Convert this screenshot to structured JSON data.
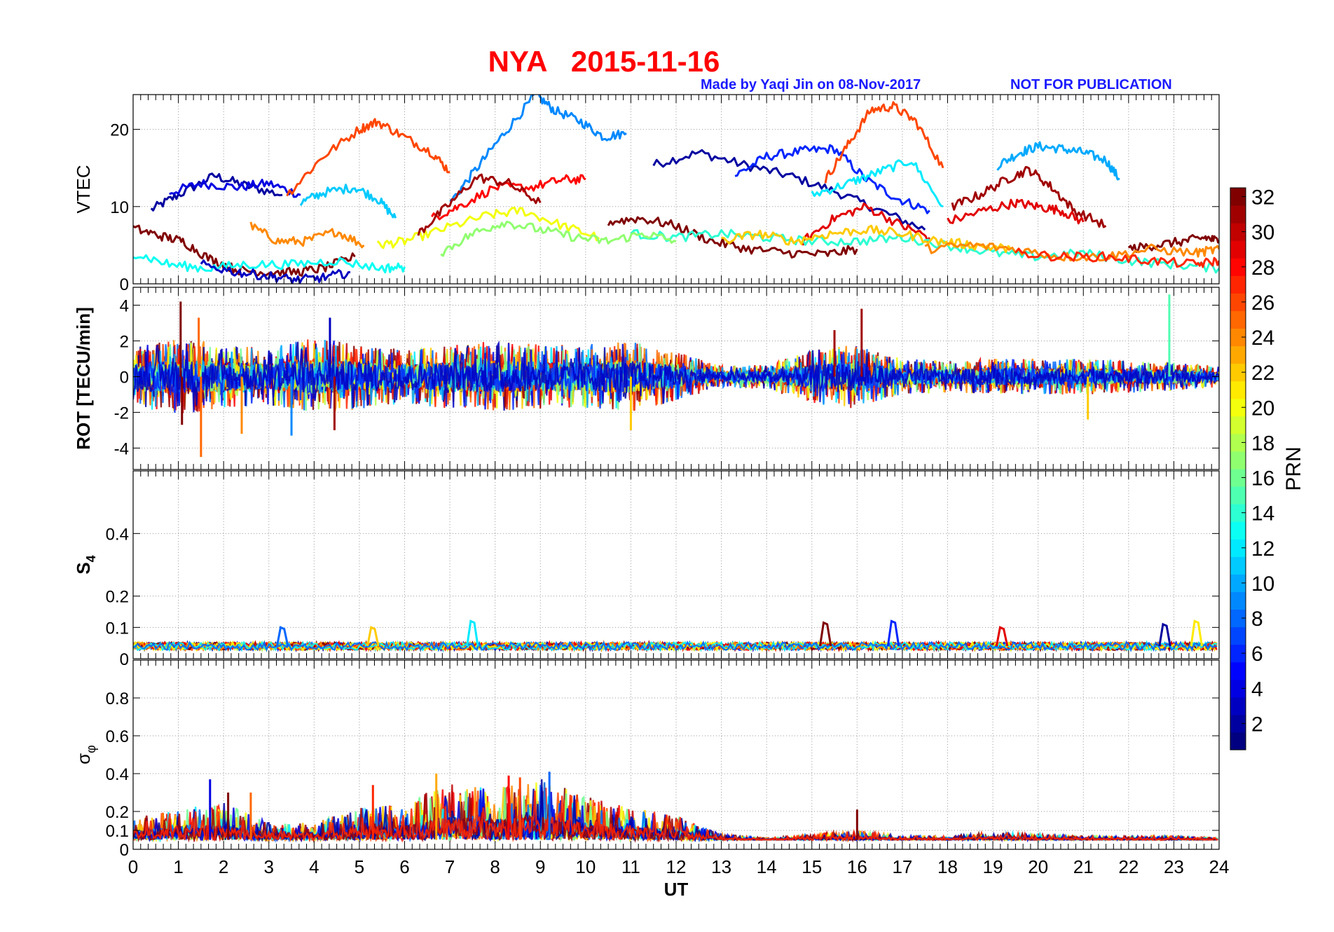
{
  "figure": {
    "title": "NYA   2015-11-16",
    "credit_left": "Made by Yaqi Jin on 08-Nov-2017",
    "credit_right": "NOT FOR PUBLICATION"
  },
  "colors": {
    "title": "#ff0000",
    "credit": "#1a1aff",
    "grid": "#9a9a9a",
    "axis": "#000000"
  },
  "chart_data": [
    {
      "type": "line",
      "panel": "vtec",
      "ylabel": "VTEC",
      "ylim": [
        0,
        24.5
      ],
      "yticks": [
        0,
        10,
        20
      ],
      "xlim": [
        0,
        24
      ],
      "grid": true,
      "series": [
        {
          "prn": 2,
          "x": [
            0.4,
            1.0,
            1.8,
            2.5,
            3.3
          ],
          "y": [
            9.6,
            11.5,
            14.0,
            12.7,
            11.5
          ]
        },
        {
          "prn": 2,
          "x": [
            11.5,
            12.5,
            13.5,
            14.5,
            15.5,
            16.5,
            17.5
          ],
          "y": [
            15.4,
            17.0,
            15.4,
            14.0,
            12.0,
            9.5,
            7.0
          ]
        },
        {
          "prn": 4,
          "x": [
            0.8,
            1.5,
            2.3,
            3.0,
            3.7
          ],
          "y": [
            11.8,
            13.0,
            12.5,
            13.0,
            11.5
          ]
        },
        {
          "prn": 6,
          "x": [
            13.3,
            14.0,
            14.8,
            15.5,
            16.2,
            16.9,
            17.6
          ],
          "y": [
            14.0,
            16.5,
            17.2,
            17.5,
            13.5,
            11.0,
            9.5
          ]
        },
        {
          "prn": 9,
          "x": [
            7.0,
            7.6,
            8.2,
            8.9,
            9.3,
            9.9,
            10.4,
            10.9
          ],
          "y": [
            10.5,
            15.0,
            19.5,
            24.5,
            22.5,
            21.0,
            19.0,
            19.5
          ]
        },
        {
          "prn": 10,
          "x": [
            19.1,
            19.6,
            20.0,
            20.5,
            21.0,
            21.5,
            21.8
          ],
          "y": [
            15.3,
            17.0,
            17.8,
            17.5,
            17.0,
            16.0,
            13.5
          ]
        },
        {
          "prn": 11,
          "x": [
            3.7,
            4.2,
            4.9,
            5.4,
            5.8
          ],
          "y": [
            10.5,
            11.8,
            12.5,
            11.0,
            8.5
          ]
        },
        {
          "prn": 12,
          "x": [
            15.0,
            15.8,
            16.4,
            17.2,
            17.9
          ],
          "y": [
            11.5,
            13.0,
            14.3,
            16.0,
            10.0
          ]
        },
        {
          "prn": 20,
          "x": [
            5.4,
            6.0,
            6.8,
            7.8,
            8.6,
            9.5,
            10.3
          ],
          "y": [
            5.0,
            5.5,
            7.0,
            8.8,
            9.5,
            7.5,
            6.0
          ]
        },
        {
          "prn": 24,
          "x": [
            2.6,
            3.2,
            3.8,
            4.5,
            5.1
          ],
          "y": [
            7.5,
            5.5,
            5.5,
            6.8,
            5.0
          ]
        },
        {
          "prn": 26,
          "x": [
            3.4,
            4.2,
            5.0,
            5.4,
            6.0,
            6.6,
            7.0
          ],
          "y": [
            11.5,
            16.5,
            20.0,
            21.0,
            19.0,
            17.0,
            14.5
          ]
        },
        {
          "prn": 26,
          "x": [
            15.3,
            15.8,
            16.3,
            16.8,
            17.3,
            17.9
          ],
          "y": [
            13.5,
            18.0,
            22.5,
            23.0,
            21.0,
            15.0
          ]
        },
        {
          "prn": 28,
          "x": [
            6.6,
            7.2,
            8.0,
            8.8,
            9.5,
            10.0
          ],
          "y": [
            8.5,
            10.0,
            12.5,
            12.5,
            13.5,
            13.5
          ]
        },
        {
          "prn": 29,
          "x": [
            14.8,
            15.5,
            16.2,
            17.0,
            17.6
          ],
          "y": [
            5.5,
            8.5,
            10.0,
            7.5,
            6.0
          ]
        },
        {
          "prn": 29,
          "x": [
            18.0,
            18.8,
            19.5,
            20.0,
            20.5,
            21.0
          ],
          "y": [
            8.0,
            9.5,
            10.5,
            10.0,
            9.5,
            8.0
          ]
        },
        {
          "prn": 31,
          "x": [
            6.3,
            6.9,
            7.6,
            8.3,
            9.0
          ],
          "y": [
            6.5,
            9.8,
            13.8,
            13.0,
            10.5
          ]
        },
        {
          "prn": 31,
          "x": [
            18.1,
            18.7,
            19.3,
            19.8,
            20.3,
            20.8,
            21.5
          ],
          "y": [
            10.0,
            11.5,
            13.5,
            14.8,
            12.5,
            9.5,
            7.5
          ]
        },
        {
          "prn": 32,
          "x": [
            0.0,
            0.6,
            1.1,
            1.7,
            2.3,
            2.9,
            3.6,
            4.2,
            4.9
          ],
          "y": [
            7.2,
            6.2,
            5.5,
            3.2,
            1.8,
            1.5,
            1.5,
            2.0,
            3.5
          ]
        },
        {
          "prn": 32,
          "x": [
            10.5,
            11.2,
            12.0,
            12.8,
            13.6,
            14.5,
            15.3,
            16.0
          ],
          "y": [
            8.0,
            8.5,
            7.5,
            5.5,
            4.5,
            4.0,
            3.8,
            4.5
          ]
        },
        {
          "prn": 32,
          "x": [
            22.0,
            22.6,
            23.2,
            23.7,
            24.0
          ],
          "y": [
            4.5,
            5.0,
            5.5,
            6.0,
            5.5
          ]
        },
        {
          "prn": 13,
          "x": [
            0.0,
            0.8,
            1.6,
            2.5,
            3.5,
            4.5,
            5.5,
            6.0
          ],
          "y": [
            4.0,
            2.5,
            2.0,
            2.5,
            2.5,
            3.0,
            2.0,
            2.2
          ]
        },
        {
          "prn": 14,
          "x": [
            11.0,
            12.0,
            13.0,
            14.0,
            15.0,
            16.0,
            17.0,
            18.0,
            19.0,
            20.0,
            21.0,
            22.0,
            23.0,
            24.0
          ],
          "y": [
            6.5,
            6.0,
            6.5,
            6.0,
            5.5,
            5.5,
            6.0,
            5.0,
            4.0,
            3.5,
            4.0,
            3.0,
            2.5,
            2.0
          ]
        },
        {
          "prn": 17,
          "x": [
            6.8,
            7.5,
            8.2,
            9.0,
            9.8,
            10.5,
            11.3,
            12.0
          ],
          "y": [
            4.0,
            6.5,
            8.0,
            7.0,
            6.0,
            5.5,
            6.5,
            5.5
          ]
        },
        {
          "prn": 22,
          "x": [
            13.0,
            13.8,
            14.6,
            15.4,
            16.2,
            17.0,
            17.8,
            18.6,
            19.4
          ],
          "y": [
            5.5,
            6.5,
            5.5,
            6.5,
            7.0,
            6.5,
            5.5,
            5.0,
            4.5
          ]
        },
        {
          "prn": 24,
          "x": [
            17.5,
            18.5,
            19.5,
            20.5,
            21.5,
            22.5,
            23.5,
            24.0
          ],
          "y": [
            4.5,
            5.0,
            4.5,
            3.5,
            3.5,
            4.5,
            4.0,
            4.5
          ]
        },
        {
          "prn": 3,
          "x": [
            1.5,
            2.3,
            3.0,
            3.6,
            4.2,
            4.8
          ],
          "y": [
            2.5,
            1.5,
            1.0,
            0.5,
            0.8,
            1.5
          ]
        },
        {
          "prn": 27,
          "x": [
            19.5,
            20.5,
            21.5,
            22.5,
            23.5,
            24.0
          ],
          "y": [
            4.0,
            3.5,
            3.5,
            3.0,
            2.5,
            3.0
          ]
        }
      ]
    },
    {
      "type": "line",
      "panel": "rot",
      "ylabel": "ROT [TECU/min]",
      "ylim": [
        -5.2,
        5.0
      ],
      "yticks": [
        -4,
        -2,
        0,
        2,
        4
      ],
      "xlim": [
        0,
        24
      ],
      "grid": true,
      "noise_envelope": {
        "x": [
          0,
          1,
          2,
          3,
          4,
          5,
          6,
          7,
          8,
          9,
          10,
          11,
          12,
          13,
          14,
          15,
          16,
          17,
          18,
          19,
          20,
          21,
          22,
          23,
          24
        ],
        "y": [
          1.6,
          2.2,
          1.8,
          1.6,
          2.2,
          1.8,
          1.5,
          1.8,
          2.0,
          1.8,
          1.8,
          2.0,
          1.4,
          0.6,
          0.7,
          1.5,
          1.8,
          1.0,
          0.9,
          1.0,
          1.0,
          1.0,
          0.9,
          0.8,
          0.6
        ]
      },
      "spikes": [
        {
          "prn": 32,
          "x": 1.05,
          "y": 4.2
        },
        {
          "prn": 32,
          "x": 1.08,
          "y": -2.7
        },
        {
          "prn": 25,
          "x": 1.5,
          "y": -4.5
        },
        {
          "prn": 25,
          "x": 1.45,
          "y": 3.3
        },
        {
          "prn": 3,
          "x": 4.35,
          "y": 3.3
        },
        {
          "prn": 31,
          "x": 4.45,
          "y": -3.0
        },
        {
          "prn": 9,
          "x": 3.5,
          "y": -3.3
        },
        {
          "prn": 24,
          "x": 2.4,
          "y": -3.2
        },
        {
          "prn": 15,
          "x": 22.9,
          "y": 4.6
        },
        {
          "prn": 31,
          "x": 15.5,
          "y": 2.6
        },
        {
          "prn": 31,
          "x": 16.1,
          "y": 3.8
        },
        {
          "prn": 22,
          "x": 21.1,
          "y": -2.4
        },
        {
          "prn": 22,
          "x": 11.0,
          "y": -3.0
        }
      ]
    },
    {
      "type": "line",
      "panel": "s4",
      "ylabel": "S4",
      "ylim": [
        0,
        0.6
      ],
      "yticks": [
        0,
        0.1,
        0.2,
        0.4
      ],
      "xlim": [
        0,
        24
      ],
      "grid": true,
      "baseline": 0.04,
      "spikes": [
        {
          "prn": 12,
          "x": 7.5,
          "y": 0.12
        },
        {
          "prn": 32,
          "x": 15.3,
          "y": 0.115
        },
        {
          "prn": 6,
          "x": 16.8,
          "y": 0.12
        },
        {
          "prn": 21,
          "x": 23.5,
          "y": 0.12
        },
        {
          "prn": 2,
          "x": 22.8,
          "y": 0.11
        },
        {
          "prn": 8,
          "x": 3.3,
          "y": 0.1
        },
        {
          "prn": 29,
          "x": 19.2,
          "y": 0.1
        },
        {
          "prn": 22,
          "x": 5.3,
          "y": 0.1
        }
      ]
    },
    {
      "type": "line",
      "panel": "sigma_phi",
      "ylabel": "σφ",
      "ylim": [
        0,
        1.0
      ],
      "yticks": [
        0,
        0.1,
        0.2,
        0.4,
        0.6,
        0.8
      ],
      "xlim": [
        0,
        24
      ],
      "xlabel": "UT",
      "xticks": [
        "0",
        "1",
        "2",
        "3",
        "4",
        "5",
        "6",
        "7",
        "8",
        "9",
        "10",
        "11",
        "12",
        "13",
        "14",
        "15",
        "16",
        "17",
        "18",
        "19",
        "20",
        "21",
        "22",
        "23",
        "24"
      ],
      "grid": true,
      "envelope": {
        "x": [
          0,
          1,
          2,
          3,
          4,
          5,
          6,
          7,
          8,
          9,
          10,
          11,
          12,
          13,
          14,
          15,
          16,
          17,
          18,
          19,
          20,
          21,
          22,
          23,
          24
        ],
        "y": [
          0.16,
          0.22,
          0.25,
          0.14,
          0.14,
          0.22,
          0.25,
          0.35,
          0.32,
          0.38,
          0.28,
          0.22,
          0.18,
          0.08,
          0.06,
          0.08,
          0.1,
          0.07,
          0.07,
          0.09,
          0.08,
          0.07,
          0.07,
          0.07,
          0.06
        ]
      },
      "spikes": [
        {
          "prn": 4,
          "x": 1.7,
          "y": 0.37
        },
        {
          "prn": 32,
          "x": 2.1,
          "y": 0.3
        },
        {
          "prn": 25,
          "x": 2.6,
          "y": 0.3
        },
        {
          "prn": 27,
          "x": 5.3,
          "y": 0.34
        },
        {
          "prn": 23,
          "x": 6.7,
          "y": 0.4
        },
        {
          "prn": 28,
          "x": 8.3,
          "y": 0.39
        },
        {
          "prn": 8,
          "x": 9.2,
          "y": 0.41
        },
        {
          "prn": 26,
          "x": 8.55,
          "y": 0.38
        },
        {
          "prn": 32,
          "x": 16.0,
          "y": 0.21
        }
      ]
    }
  ],
  "colorbar": {
    "label": "PRN",
    "range": [
      1,
      32
    ],
    "ticks": [
      "2",
      "4",
      "6",
      "8",
      "10",
      "12",
      "14",
      "16",
      "18",
      "20",
      "22",
      "24",
      "26",
      "28",
      "30",
      "32"
    ]
  }
}
